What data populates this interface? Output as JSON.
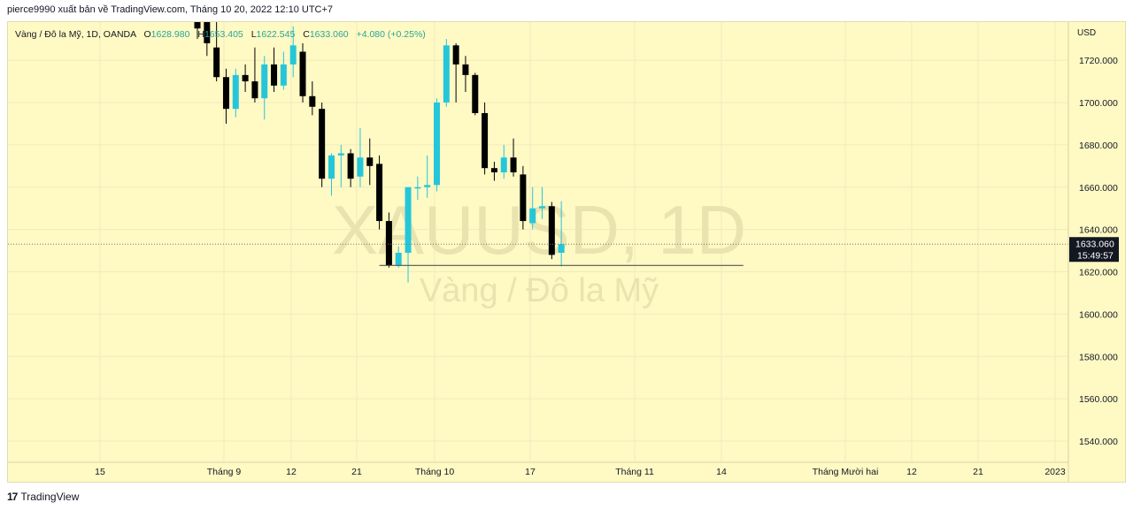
{
  "header": {
    "publisher_line": "pierce9990 xuất bản về TradingView.com, Tháng 10 20, 2022 12:10 UTC+7"
  },
  "legend": {
    "symbol_desc": "Vàng / Đô la Mỹ, 1D, OANDA",
    "o_label": "O",
    "o_value": "1628.980",
    "h_label": "H",
    "h_value": "1653.405",
    "l_label": "L",
    "l_value": "1622.545",
    "c_label": "C",
    "c_value": "1633.060",
    "change": "+4.080 (+0.25%)"
  },
  "watermark": {
    "symbol": "XAUUSD, 1D",
    "description": "Vàng / Đô la Mỹ"
  },
  "price_axis": {
    "currency": "USD",
    "ticks": [
      "1720.000",
      "1700.000",
      "1680.000",
      "1660.000",
      "1640.000",
      "1620.000",
      "1600.000",
      "1580.000",
      "1560.000",
      "1540.000"
    ],
    "last_price_label": "1633.060",
    "countdown_label": "15:49:57"
  },
  "time_axis": {
    "ticks": [
      "15",
      "Tháng 9",
      "12",
      "21",
      "Tháng 10",
      "17",
      "Tháng 11",
      "14",
      "Tháng Mười hai",
      "12",
      "21",
      "2023"
    ]
  },
  "footer": {
    "brand": "TradingView",
    "logo_glyph": "17"
  },
  "colors": {
    "up": "#26c6da",
    "down": "#000000",
    "background": "#fff9c4",
    "last_price_bg": "#131722"
  },
  "chart_data": {
    "type": "candlestick",
    "symbol": "XAUUSD",
    "interval": "1D",
    "ylim": [
      1530,
      1738
    ],
    "last_price": 1633.06,
    "horizontal_line": {
      "price": 1623,
      "from_index": 19,
      "to_index": 57
    },
    "candles": [
      {
        "o": 1742,
        "h": 1752,
        "l": 1730,
        "c": 1735
      },
      {
        "o": 1740,
        "h": 1752,
        "l": 1722,
        "c": 1728
      },
      {
        "o": 1726,
        "h": 1740,
        "l": 1710,
        "c": 1712
      },
      {
        "o": 1712,
        "h": 1716,
        "l": 1690,
        "c": 1697
      },
      {
        "o": 1697,
        "h": 1716,
        "l": 1693,
        "c": 1713
      },
      {
        "o": 1713,
        "h": 1718,
        "l": 1705,
        "c": 1710
      },
      {
        "o": 1710,
        "h": 1726,
        "l": 1700,
        "c": 1702
      },
      {
        "o": 1702,
        "h": 1722,
        "l": 1692,
        "c": 1718
      },
      {
        "o": 1718,
        "h": 1726,
        "l": 1705,
        "c": 1708
      },
      {
        "o": 1708,
        "h": 1724,
        "l": 1706,
        "c": 1718
      },
      {
        "o": 1718,
        "h": 1736,
        "l": 1712,
        "c": 1727
      },
      {
        "o": 1724,
        "h": 1728,
        "l": 1700,
        "c": 1703
      },
      {
        "o": 1703,
        "h": 1710,
        "l": 1694,
        "c": 1698
      },
      {
        "o": 1697,
        "h": 1700,
        "l": 1660,
        "c": 1664
      },
      {
        "o": 1664,
        "h": 1676,
        "l": 1656,
        "c": 1675
      },
      {
        "o": 1675,
        "h": 1680,
        "l": 1660,
        "c": 1676
      },
      {
        "o": 1676,
        "h": 1678,
        "l": 1660,
        "c": 1664
      },
      {
        "o": 1665,
        "h": 1688,
        "l": 1660,
        "c": 1674
      },
      {
        "o": 1674,
        "h": 1683,
        "l": 1661,
        "c": 1670
      },
      {
        "o": 1671,
        "h": 1675,
        "l": 1640,
        "c": 1644
      },
      {
        "o": 1644,
        "h": 1648,
        "l": 1622,
        "c": 1623
      },
      {
        "o": 1623,
        "h": 1632,
        "l": 1622,
        "c": 1629
      },
      {
        "o": 1629,
        "h": 1660,
        "l": 1615,
        "c": 1660
      },
      {
        "o": 1660,
        "h": 1665,
        "l": 1654,
        "c": 1660
      },
      {
        "o": 1660,
        "h": 1675,
        "l": 1655,
        "c": 1661
      },
      {
        "o": 1661,
        "h": 1702,
        "l": 1658,
        "c": 1700
      },
      {
        "o": 1700,
        "h": 1730,
        "l": 1698,
        "c": 1727
      },
      {
        "o": 1727,
        "h": 1728,
        "l": 1700,
        "c": 1718
      },
      {
        "o": 1718,
        "h": 1722,
        "l": 1705,
        "c": 1713
      },
      {
        "o": 1713,
        "h": 1714,
        "l": 1694,
        "c": 1695
      },
      {
        "o": 1695,
        "h": 1700,
        "l": 1666,
        "c": 1669
      },
      {
        "o": 1669,
        "h": 1672,
        "l": 1663,
        "c": 1667
      },
      {
        "o": 1667,
        "h": 1680,
        "l": 1664,
        "c": 1674
      },
      {
        "o": 1674,
        "h": 1683,
        "l": 1665,
        "c": 1667
      },
      {
        "o": 1666,
        "h": 1670,
        "l": 1640,
        "c": 1644
      },
      {
        "o": 1643,
        "h": 1660,
        "l": 1640,
        "c": 1650
      },
      {
        "o": 1650,
        "h": 1660,
        "l": 1645,
        "c": 1651
      },
      {
        "o": 1651,
        "h": 1653,
        "l": 1626,
        "c": 1628
      },
      {
        "o": 1628.98,
        "h": 1653.405,
        "l": 1622.545,
        "c": 1633.06
      }
    ]
  }
}
